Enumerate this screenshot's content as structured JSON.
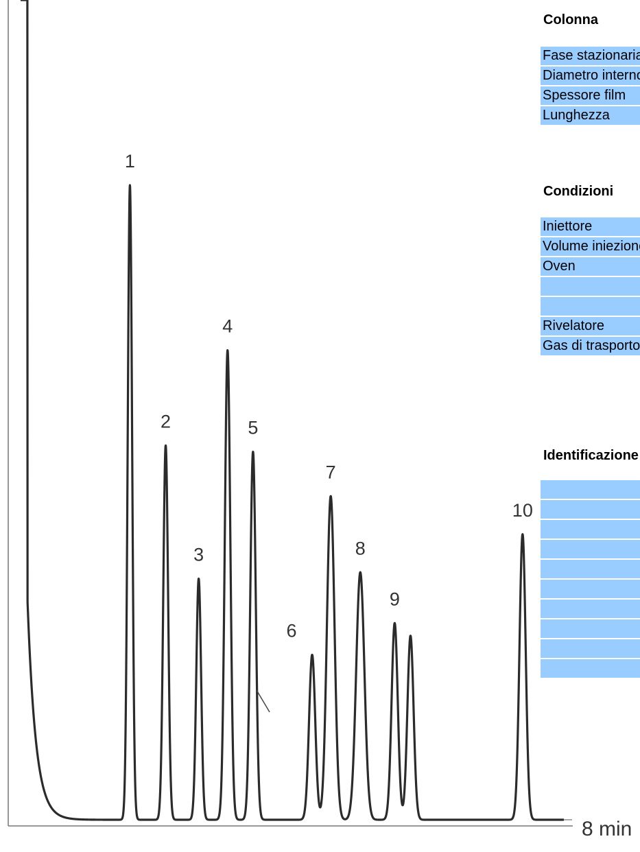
{
  "chart_data": {
    "type": "line",
    "title": "",
    "xlabel": "",
    "ylabel": "",
    "x_end_label": "8 min",
    "x_unit": "min",
    "xlim": [
      0,
      8
    ],
    "ylim": [
      0,
      100
    ],
    "line_color": "#333333",
    "peaks": [
      {
        "label": "1",
        "time": 1.59,
        "height": 100,
        "width": 0.032
      },
      {
        "label": "2",
        "time": 2.11,
        "height": 59,
        "width": 0.035
      },
      {
        "label": "3",
        "time": 2.59,
        "height": 38,
        "width": 0.035
      },
      {
        "label": "4",
        "time": 3.01,
        "height": 74,
        "width": 0.04
      },
      {
        "label": "5",
        "time": 3.38,
        "height": 58,
        "width": 0.04
      },
      {
        "label": "6",
        "time": 4.24,
        "height": 26,
        "width": 0.045
      },
      {
        "label": "7",
        "time": 4.51,
        "height": 51,
        "width": 0.055
      },
      {
        "label": "8",
        "time": 4.94,
        "height": 39,
        "width": 0.06
      },
      {
        "label": "9",
        "time": 5.44,
        "height": 31,
        "width": 0.045
      },
      {
        "label": "",
        "time": 5.67,
        "height": 29,
        "width": 0.045
      },
      {
        "label": "10",
        "time": 7.3,
        "height": 45,
        "width": 0.045
      }
    ],
    "solvent_front": {
      "time": 0.08,
      "height": 300
    }
  },
  "panel": {
    "colonna": {
      "title": "Colonna",
      "rows": [
        "Fase stazionaria",
        "Diametro interno",
        "Spessore film",
        "Lunghezza"
      ]
    },
    "condizioni": {
      "title": "Condizioni",
      "rows": [
        "Iniettore",
        "Volume iniezione",
        "Oven",
        "",
        "",
        "Rivelatore",
        "Gas di trasporto"
      ]
    },
    "identificazione": {
      "title": "Identificazione",
      "rows": [
        "",
        "",
        "",
        "",
        "",
        "",
        "",
        "",
        "",
        ""
      ]
    }
  }
}
